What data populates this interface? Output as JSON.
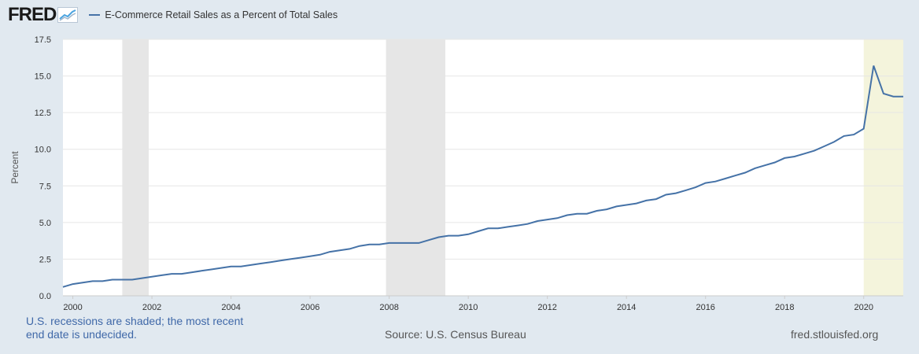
{
  "header": {
    "logo_text": "FRED",
    "logo_icon": "chart-line-icon",
    "series_name": "E-Commerce Retail Sales as a Percent of Total Sales"
  },
  "colors": {
    "line": "#4572a7",
    "recession": "#e6e6e6",
    "undecided": "#f4f4dc",
    "grid": "#e6e6e6",
    "plot_bg": "#ffffff",
    "page_bg": "#e1e9f0"
  },
  "chart_data": {
    "type": "line",
    "title": "",
    "xlabel": "",
    "ylabel": "Percent",
    "xlim": [
      1999.75,
      2021.0
    ],
    "ylim": [
      0,
      17.5
    ],
    "yticks": [
      "0.0",
      "2.5",
      "5.0",
      "7.5",
      "10.0",
      "12.5",
      "15.0",
      "17.5"
    ],
    "xticks": [
      "2000",
      "2002",
      "2004",
      "2006",
      "2008",
      "2010",
      "2012",
      "2014",
      "2016",
      "2018",
      "2020"
    ],
    "grid": true,
    "recessions": [
      [
        2001.25,
        2001.92
      ],
      [
        2007.92,
        2009.42
      ]
    ],
    "undecided_shade": [
      2020.0,
      2021.0
    ],
    "series": [
      {
        "name": "E-Commerce Retail Sales as a Percent of Total Sales",
        "x": [
          1999.75,
          2000.0,
          2000.25,
          2000.5,
          2000.75,
          2001.0,
          2001.25,
          2001.5,
          2001.75,
          2002.0,
          2002.25,
          2002.5,
          2002.75,
          2003.0,
          2003.25,
          2003.5,
          2003.75,
          2004.0,
          2004.25,
          2004.5,
          2004.75,
          2005.0,
          2005.25,
          2005.5,
          2005.75,
          2006.0,
          2006.25,
          2006.5,
          2006.75,
          2007.0,
          2007.25,
          2007.5,
          2007.75,
          2008.0,
          2008.25,
          2008.5,
          2008.75,
          2009.0,
          2009.25,
          2009.5,
          2009.75,
          2010.0,
          2010.25,
          2010.5,
          2010.75,
          2011.0,
          2011.25,
          2011.5,
          2011.75,
          2012.0,
          2012.25,
          2012.5,
          2012.75,
          2013.0,
          2013.25,
          2013.5,
          2013.75,
          2014.0,
          2014.25,
          2014.5,
          2014.75,
          2015.0,
          2015.25,
          2015.5,
          2015.75,
          2016.0,
          2016.25,
          2016.5,
          2016.75,
          2017.0,
          2017.25,
          2017.5,
          2017.75,
          2018.0,
          2018.25,
          2018.5,
          2018.75,
          2019.0,
          2019.25,
          2019.5,
          2019.75,
          2020.0,
          2020.25,
          2020.5,
          2020.75,
          2021.0
        ],
        "y": [
          0.6,
          0.8,
          0.9,
          1.0,
          1.0,
          1.1,
          1.1,
          1.1,
          1.2,
          1.3,
          1.4,
          1.5,
          1.5,
          1.6,
          1.7,
          1.8,
          1.9,
          2.0,
          2.0,
          2.1,
          2.2,
          2.3,
          2.4,
          2.5,
          2.6,
          2.7,
          2.8,
          3.0,
          3.1,
          3.2,
          3.4,
          3.5,
          3.5,
          3.6,
          3.6,
          3.6,
          3.6,
          3.8,
          4.0,
          4.1,
          4.1,
          4.2,
          4.4,
          4.6,
          4.6,
          4.7,
          4.8,
          4.9,
          5.1,
          5.2,
          5.3,
          5.5,
          5.6,
          5.6,
          5.8,
          5.9,
          6.1,
          6.2,
          6.3,
          6.5,
          6.6,
          6.9,
          7.0,
          7.2,
          7.4,
          7.7,
          7.8,
          8.0,
          8.2,
          8.4,
          8.7,
          8.9,
          9.1,
          9.4,
          9.5,
          9.7,
          9.9,
          10.2,
          10.5,
          10.9,
          11.0,
          11.4,
          15.7,
          13.8,
          13.6,
          13.6
        ]
      }
    ]
  },
  "footer": {
    "note": "U.S. recessions are shaded; the most recent end date is undecided.",
    "source": "Source: U.S. Census Bureau",
    "url": "fred.stlouisfed.org"
  }
}
